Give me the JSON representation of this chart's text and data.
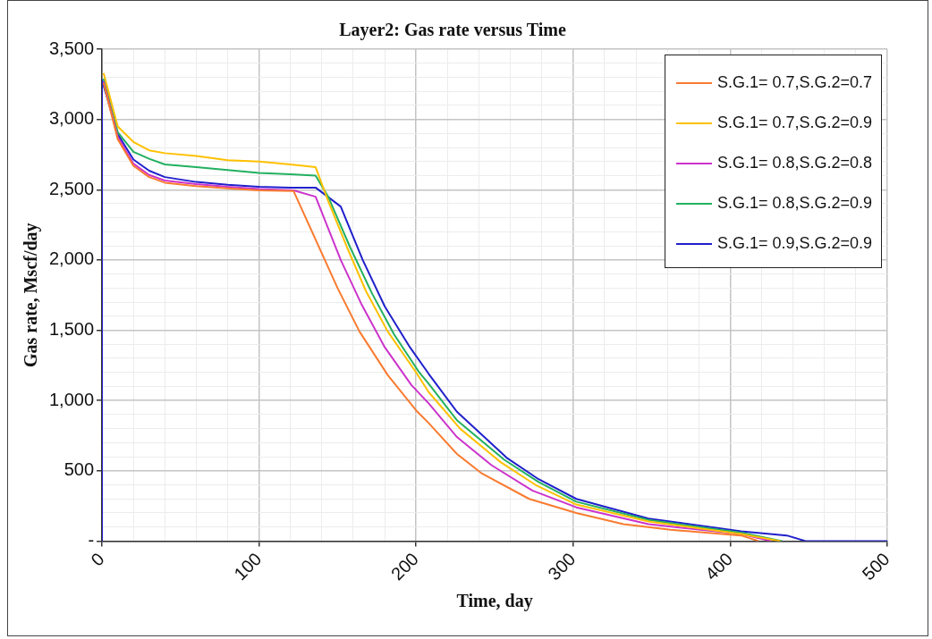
{
  "chart_data": {
    "type": "line",
    "title": "Layer2: Gas rate versus Time",
    "xlabel": "Time, day",
    "ylabel": "Gas rate, Mscf/day",
    "xlim": [
      0,
      500
    ],
    "ylim": [
      0,
      3500
    ],
    "xticks": [
      0,
      {
        "value": 20,
        "label": null
      },
      {
        "value": 40,
        "label": null
      },
      {
        "value": 60,
        "label": null
      },
      {
        "value": 80,
        "label": null
      },
      100,
      {
        "value": 120,
        "label": null
      },
      {
        "value": 140,
        "label": null
      },
      {
        "value": 160,
        "label": null
      },
      {
        "value": 180,
        "label": null
      },
      200,
      {
        "value": 220,
        "label": null
      },
      {
        "value": 240,
        "label": null
      },
      {
        "value": 260,
        "label": null
      },
      {
        "value": 280,
        "label": null
      },
      300,
      {
        "value": 320,
        "label": null
      },
      {
        "value": 340,
        "label": null
      },
      {
        "value": 360,
        "label": null
      },
      {
        "value": 380,
        "label": null
      },
      400,
      {
        "value": 420,
        "label": null
      },
      {
        "value": 440,
        "label": null
      },
      {
        "value": 460,
        "label": null
      },
      {
        "value": 480,
        "label": null
      },
      500
    ],
    "yticks": [
      {
        "value": 0,
        "label": "-"
      },
      {
        "value": 100,
        "label": null
      },
      {
        "value": 200,
        "label": null
      },
      {
        "value": 300,
        "label": null
      },
      {
        "value": 400,
        "label": null
      },
      500,
      {
        "value": 600,
        "label": null
      },
      {
        "value": 700,
        "label": null
      },
      {
        "value": 800,
        "label": null
      },
      {
        "value": 900,
        "label": null
      },
      {
        "value": 1000,
        "label": "1,000"
      },
      {
        "value": 1100,
        "label": null
      },
      {
        "value": 1200,
        "label": null
      },
      {
        "value": 1300,
        "label": null
      },
      {
        "value": 1400,
        "label": null
      },
      {
        "value": 1500,
        "label": "1,500"
      },
      {
        "value": 1600,
        "label": null
      },
      {
        "value": 1700,
        "label": null
      },
      {
        "value": 1800,
        "label": null
      },
      {
        "value": 1900,
        "label": null
      },
      {
        "value": 2000,
        "label": "2,000"
      },
      {
        "value": 2100,
        "label": null
      },
      {
        "value": 2200,
        "label": null
      },
      {
        "value": 2300,
        "label": null
      },
      {
        "value": 2400,
        "label": null
      },
      {
        "value": 2500,
        "label": "2,500"
      },
      {
        "value": 2600,
        "label": null
      },
      {
        "value": 2700,
        "label": null
      },
      {
        "value": 2800,
        "label": null
      },
      {
        "value": 2900,
        "label": null
      },
      {
        "value": 3000,
        "label": "3,000"
      },
      {
        "value": 3100,
        "label": null
      },
      {
        "value": 3200,
        "label": null
      },
      {
        "value": 3300,
        "label": null
      },
      {
        "value": 3400,
        "label": null
      },
      {
        "value": 3500,
        "label": "3,500"
      }
    ],
    "grid": true,
    "legend": "top right",
    "series": [
      {
        "name": "S.G.1= 0.7,S.G.2=0.7",
        "color": "#f97b2f",
        "x": [
          1,
          10,
          20,
          30,
          40,
          60,
          80,
          100,
          122,
          150,
          164,
          182,
          200,
          208,
          226,
          242,
          272,
          302,
          332,
          362,
          407,
          418
        ],
        "values": [
          3260,
          2860,
          2670,
          2590,
          2550,
          2525,
          2510,
          2495,
          2490,
          1800,
          1490,
          1180,
          930,
          840,
          620,
          480,
          300,
          200,
          120,
          80,
          40,
          0
        ]
      },
      {
        "name": "S.G.1= 0.7,S.G.2=0.9",
        "color": "#ffc000",
        "x": [
          1,
          10,
          20,
          30,
          40,
          60,
          80,
          100,
          120,
          136,
          144,
          156,
          168,
          182,
          200,
          208,
          228,
          254,
          276,
          302,
          348,
          407,
          432
        ],
        "values": [
          3330,
          2950,
          2840,
          2780,
          2760,
          2740,
          2710,
          2700,
          2680,
          2660,
          2420,
          2090,
          1780,
          1490,
          1200,
          1060,
          800,
          560,
          400,
          260,
          140,
          50,
          0
        ]
      },
      {
        "name": "S.G.1= 0.8,S.G.2=0.8",
        "color": "#cc33cc",
        "x": [
          1,
          10,
          20,
          30,
          40,
          60,
          80,
          100,
          122,
          136,
          152,
          165,
          180,
          197,
          208,
          226,
          248,
          274,
          302,
          348,
          407,
          426
        ],
        "values": [
          3270,
          2875,
          2685,
          2605,
          2565,
          2540,
          2520,
          2505,
          2495,
          2450,
          2000,
          1690,
          1380,
          1110,
          980,
          740,
          540,
          360,
          240,
          120,
          50,
          0
        ]
      },
      {
        "name": "S.G.1= 0.8,S.G.2=0.9",
        "color": "#22b060",
        "x": [
          1,
          10,
          20,
          30,
          40,
          60,
          80,
          100,
          120,
          136,
          144,
          158,
          172,
          186,
          202,
          208,
          226,
          256,
          278,
          302,
          348,
          407,
          433
        ],
        "values": [
          3290,
          2910,
          2770,
          2720,
          2680,
          2660,
          2640,
          2620,
          2610,
          2600,
          2450,
          2090,
          1760,
          1470,
          1200,
          1120,
          860,
          580,
          420,
          280,
          150,
          60,
          0
        ]
      },
      {
        "name": "S.G.1= 0.9,S.G.2=0.9",
        "color": "#2020cc",
        "x": [
          0,
          0,
          10,
          20,
          30,
          40,
          60,
          80,
          100,
          120,
          136,
          152,
          166,
          180,
          196,
          208,
          226,
          258,
          278,
          302,
          348,
          407,
          436,
          448,
          500
        ],
        "values": [
          0,
          3280,
          2895,
          2715,
          2635,
          2590,
          2555,
          2535,
          2520,
          2515,
          2515,
          2380,
          2000,
          1670,
          1380,
          1190,
          920,
          590,
          440,
          300,
          160,
          70,
          40,
          0,
          0
        ]
      }
    ]
  }
}
